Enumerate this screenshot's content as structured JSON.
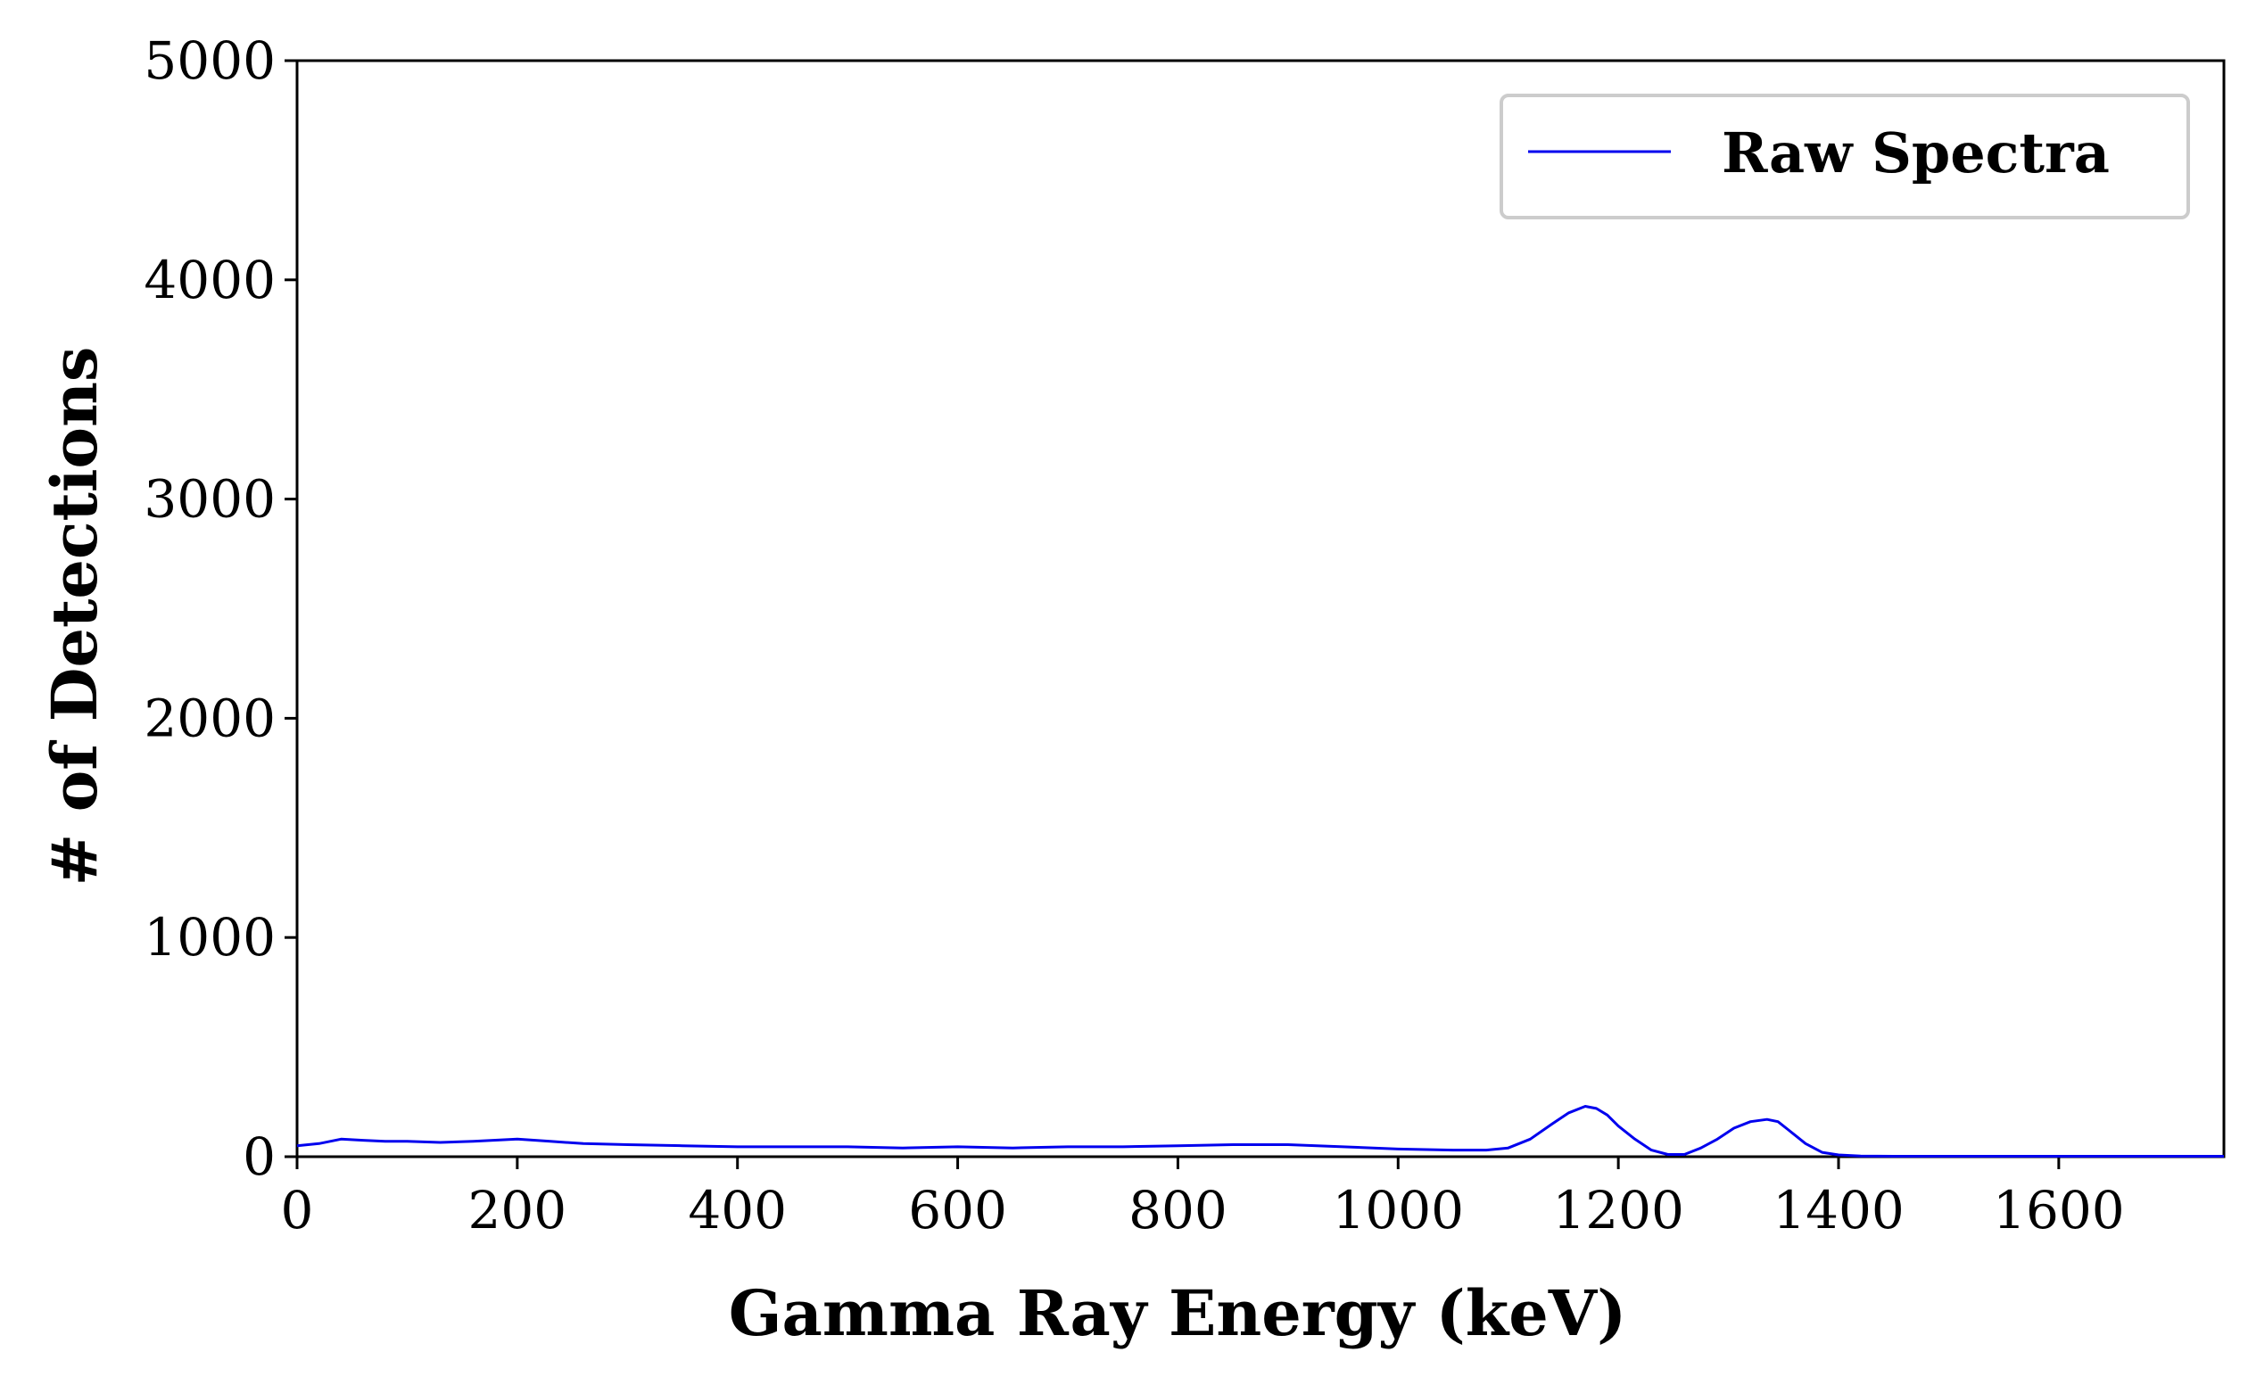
{
  "chart_data": {
    "type": "line",
    "xlabel": "Gamma Ray Energy (keV)",
    "ylabel": "# of Detections",
    "xlim": [
      0,
      1750
    ],
    "ylim": [
      0,
      5000
    ],
    "xticks": [
      0,
      200,
      400,
      600,
      800,
      1000,
      1200,
      1400,
      1600
    ],
    "yticks": [
      0,
      1000,
      2000,
      3000,
      4000,
      5000
    ],
    "grid": false,
    "legend_position": "top-right",
    "series": [
      {
        "name": "Raw Spectra",
        "color": "#0000ee",
        "x": [
          0,
          20,
          40,
          60,
          80,
          100,
          130,
          160,
          200,
          230,
          260,
          300,
          350,
          400,
          450,
          500,
          550,
          600,
          650,
          700,
          750,
          800,
          850,
          900,
          950,
          1000,
          1050,
          1080,
          1100,
          1120,
          1140,
          1155,
          1170,
          1180,
          1190,
          1200,
          1215,
          1230,
          1245,
          1260,
          1275,
          1290,
          1305,
          1320,
          1335,
          1345,
          1355,
          1370,
          1385,
          1400,
          1420,
          1450,
          1500,
          1600,
          1700,
          1750
        ],
        "y": [
          50,
          60,
          80,
          75,
          70,
          70,
          65,
          70,
          80,
          70,
          60,
          55,
          50,
          45,
          45,
          45,
          40,
          45,
          40,
          45,
          45,
          50,
          55,
          55,
          45,
          35,
          30,
          30,
          40,
          80,
          150,
          200,
          230,
          220,
          190,
          140,
          80,
          30,
          10,
          10,
          40,
          80,
          130,
          160,
          170,
          160,
          120,
          60,
          20,
          8,
          3,
          2,
          2,
          2,
          2,
          2
        ]
      }
    ]
  }
}
